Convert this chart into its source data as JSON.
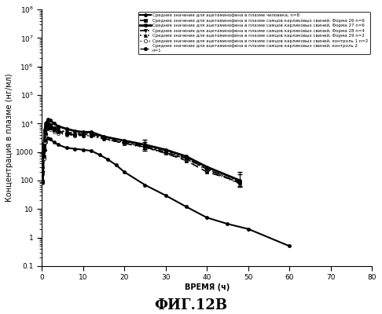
{
  "title": "ФИГ.12В",
  "xlabel": "ВРЕМЯ (ч)",
  "ylabel": "Концентрация в плазме (нг/мл)",
  "xlim": [
    0,
    80
  ],
  "ylim": [
    0.1,
    100000000.0
  ],
  "xticks": [
    0,
    10,
    20,
    30,
    40,
    50,
    60,
    70,
    80
  ],
  "yticks": [
    0.1,
    1,
    10,
    100,
    1000,
    10000,
    1000000,
    100000000
  ],
  "ytick_labels": [
    "0.1",
    "1",
    "10",
    "100",
    "1000",
    "10$^4$",
    "10$^6$",
    "10$^8$"
  ],
  "series": [
    {
      "label": "Среднее значение для ацетаминофена в плазме человека, n=8",
      "x": [
        0.25,
        0.5,
        0.75,
        1.0,
        1.5,
        2.0,
        3.0,
        4.0,
        6.0,
        8.0,
        10.0,
        12.0,
        14.0,
        16.0,
        18.0,
        20.0,
        25.0,
        30.0,
        35.0,
        40.0,
        45.0,
        50.0,
        60.0
      ],
      "y": [
        100,
        600,
        1200,
        2200,
        3000,
        2800,
        2200,
        1800,
        1400,
        1300,
        1200,
        1100,
        800,
        550,
        350,
        200,
        70,
        30,
        12,
        5,
        3,
        2,
        0.5
      ],
      "linestyle": "solid",
      "marker": "o",
      "markerfacecolor": "black",
      "linewidth": 1.5,
      "dashes": null
    },
    {
      "label": "Среднее значение для ацетаминофена в плазме самцов карликовых свиней, Форма 26 n=6",
      "x": [
        0.25,
        0.5,
        0.75,
        1.0,
        1.5,
        2.0,
        3.0,
        4.0,
        6.0,
        8.0,
        10.0,
        12.0,
        15.0,
        20.0,
        25.0,
        30.0,
        35.0,
        40.0,
        48.0
      ],
      "y": [
        200,
        1500,
        5000,
        8000,
        10000,
        9000,
        7000,
        5500,
        4500,
        4000,
        4000,
        4500,
        3000,
        2000,
        1500,
        900,
        500,
        200,
        90
      ],
      "linestyle": "dashed",
      "marker": "s",
      "markerfacecolor": "black",
      "linewidth": 1.2,
      "dashes": [
        6,
        3
      ]
    },
    {
      "label": "Среднее значение для ацетаминофена в плазме самцов карликовых свиней, Форма 27 n=6",
      "x": [
        0.25,
        0.5,
        0.75,
        1.0,
        1.5,
        2.0,
        3.0,
        4.0,
        6.0,
        8.0,
        10.0,
        12.0,
        15.0,
        20.0,
        25.0,
        30.0,
        35.0,
        40.0,
        48.0
      ],
      "y": [
        300,
        2000,
        6000,
        10000,
        14000,
        13000,
        10000,
        8000,
        6500,
        5500,
        5000,
        5000,
        3500,
        2500,
        1800,
        1200,
        700,
        300,
        100
      ],
      "linestyle": "solid",
      "marker": "o",
      "markerfacecolor": "black",
      "linewidth": 2.0,
      "dashes": null
    },
    {
      "label": "Среднее значение для ацетаминофена в плазме самцов карликовых свиней, Форма 28 n=4",
      "x": [
        0.25,
        0.5,
        0.75,
        1.0,
        1.5,
        2.0,
        3.0,
        4.0,
        6.0,
        8.0,
        10.0,
        12.0,
        15.0,
        20.0,
        25.0,
        30.0,
        35.0,
        40.0,
        48.0
      ],
      "y": [
        150,
        1000,
        3500,
        6000,
        9000,
        8500,
        7000,
        6000,
        5000,
        4500,
        4200,
        4200,
        3000,
        2200,
        1600,
        1000,
        600,
        250,
        80
      ],
      "linestyle": "dashdot",
      "marker": "v",
      "markerfacecolor": "black",
      "linewidth": 1.2,
      "dashes": [
        4,
        2,
        1,
        2
      ]
    },
    {
      "label": "Среднее значение для ацетаминофена в плазме самцов карликовых свиней, Форма 29 n=2",
      "x": [
        0.25,
        0.5,
        0.75,
        1.0,
        1.5,
        2.0,
        3.0,
        4.0,
        6.0,
        8.0,
        10.0,
        12.0,
        15.0,
        20.0,
        25.0,
        30.0,
        35.0,
        40.0,
        48.0
      ],
      "y": [
        100,
        800,
        2800,
        5000,
        8000,
        7800,
        6500,
        5800,
        5000,
        4600,
        4400,
        4300,
        3200,
        2400,
        1700,
        1100,
        650,
        280,
        90
      ],
      "linestyle": "dotted",
      "marker": "^",
      "markerfacecolor": "black",
      "linewidth": 1.2,
      "dashes": [
        1,
        2
      ]
    },
    {
      "label": "Среднее значение для ацетаминофена в плазме самцов карликовых свиней, контроль 1 n=2",
      "x": [
        0.25,
        0.5,
        0.75,
        1.0,
        1.5,
        2.0,
        3.0,
        4.0,
        6.0,
        8.0,
        10.0,
        12.0,
        15.0,
        20.0,
        25.0,
        30.0,
        35.0,
        40.0,
        48.0
      ],
      "y": [
        80,
        600,
        2200,
        4000,
        6500,
        6200,
        5200,
        4600,
        4000,
        3800,
        3700,
        3700,
        2800,
        2000,
        1400,
        900,
        550,
        240,
        75
      ],
      "linestyle": "dotted",
      "marker": "o",
      "markerfacecolor": "white",
      "linewidth": 1.0,
      "dashes": [
        1,
        3
      ]
    },
    {
      "label": "Среднее значение для ацетаминофена в плазме самцов карликовых свиней, контроль 2\nn=1",
      "x": [
        0.25,
        0.5,
        0.75,
        1.0,
        1.5,
        2.0,
        3.0,
        4.0,
        6.0,
        8.0,
        10.0,
        12.0,
        15.0,
        20.0,
        25.0,
        30.0,
        35.0,
        40.0,
        48.0
      ],
      "y": [
        90,
        700,
        2500,
        4500,
        7200,
        7000,
        5700,
        5000,
        4200,
        3900,
        3800,
        3750,
        2900,
        2100,
        1500,
        950,
        580,
        260,
        80
      ],
      "linestyle": "dashed",
      "marker": "o",
      "markerfacecolor": "black",
      "linewidth": 1.0,
      "dashes": [
        5,
        2,
        1,
        2
      ]
    }
  ],
  "background_color": "#ffffff",
  "axis_fontsize": 7,
  "title_fontsize": 13
}
